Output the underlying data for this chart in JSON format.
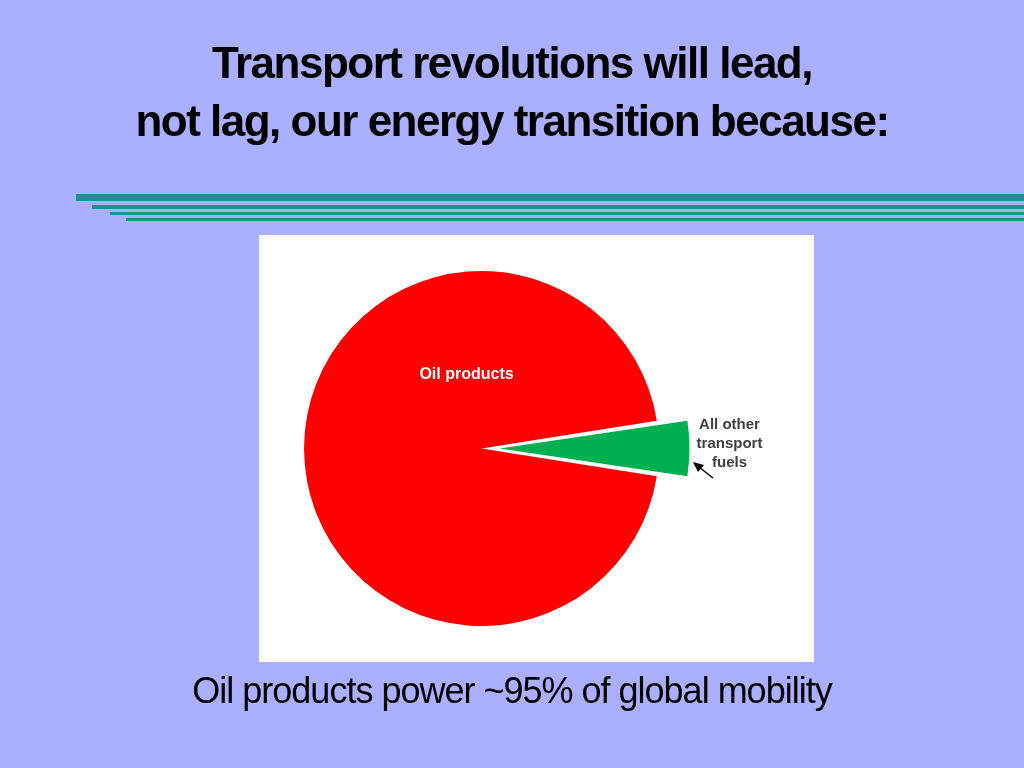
{
  "chart_data": {
    "type": "pie",
    "title": "Transport revolutions will lead,\nnot lag, our energy transition because:",
    "categories": [
      "Oil products",
      "All other transport fuels"
    ],
    "values": [
      95,
      5
    ],
    "colors": [
      "#ff0000",
      "#00b050"
    ],
    "annotations": [
      "Oil products power ~95% of global mobility"
    ],
    "legend": false
  }
}
